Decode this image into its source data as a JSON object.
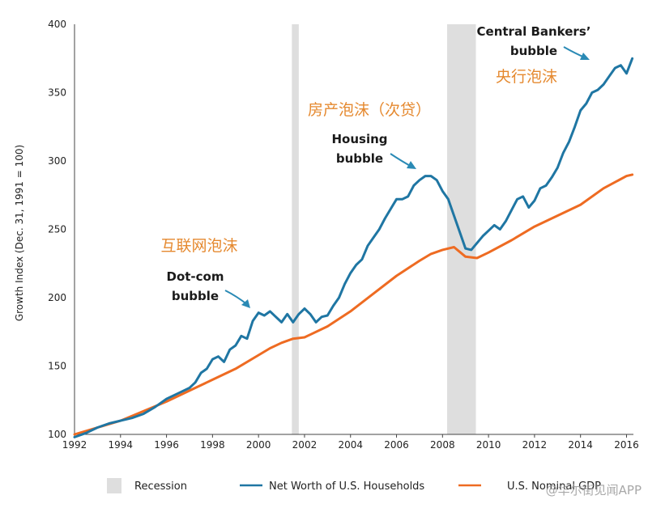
{
  "chart_data": {
    "type": "line",
    "title": "",
    "xlabel": "",
    "ylabel": "Growth Index (Dec. 31, 1991 = 100)",
    "xlim": [
      1992,
      2016.3
    ],
    "ylim": [
      100,
      400
    ],
    "x_ticks": [
      1992,
      1994,
      1996,
      1998,
      2000,
      2002,
      2004,
      2006,
      2008,
      2010,
      2012,
      2014,
      2016
    ],
    "y_ticks": [
      100,
      150,
      200,
      250,
      300,
      350,
      400
    ],
    "grid": false,
    "recessions": [
      [
        2001.45,
        2001.75
      ],
      [
        2008.2,
        2009.45
      ]
    ],
    "series": [
      {
        "name": "Net Worth of U.S. Households",
        "color": "#1f76a3",
        "x": [
          1992.0,
          1992.5,
          1993.0,
          1993.5,
          1994.0,
          1994.5,
          1995.0,
          1995.5,
          1996.0,
          1996.5,
          1997.0,
          1997.25,
          1997.5,
          1997.75,
          1998.0,
          1998.25,
          1998.5,
          1998.75,
          1999.0,
          1999.25,
          1999.5,
          1999.75,
          2000.0,
          2000.25,
          2000.5,
          2000.75,
          2001.0,
          2001.25,
          2001.5,
          2001.75,
          2002.0,
          2002.25,
          2002.5,
          2002.75,
          2003.0,
          2003.25,
          2003.5,
          2003.75,
          2004.0,
          2004.25,
          2004.5,
          2004.75,
          2005.0,
          2005.25,
          2005.5,
          2005.75,
          2006.0,
          2006.25,
          2006.5,
          2006.75,
          2007.0,
          2007.25,
          2007.5,
          2007.75,
          2008.0,
          2008.25,
          2008.5,
          2008.75,
          2009.0,
          2009.25,
          2009.5,
          2009.75,
          2010.0,
          2010.25,
          2010.5,
          2010.75,
          2011.0,
          2011.25,
          2011.5,
          2011.75,
          2012.0,
          2012.25,
          2012.5,
          2012.75,
          2013.0,
          2013.25,
          2013.5,
          2013.75,
          2014.0,
          2014.25,
          2014.5,
          2014.75,
          2015.0,
          2015.25,
          2015.5,
          2015.75,
          2016.0,
          2016.25
        ],
        "y": [
          98,
          101,
          105,
          108,
          110,
          112,
          115,
          120,
          126,
          130,
          134,
          138,
          145,
          148,
          155,
          157,
          153,
          162,
          165,
          172,
          170,
          183,
          189,
          187,
          190,
          186,
          182,
          188,
          182,
          188,
          192,
          188,
          182,
          186,
          187,
          194,
          200,
          210,
          218,
          224,
          228,
          238,
          244,
          250,
          258,
          265,
          272,
          272,
          274,
          282,
          286,
          289,
          289,
          286,
          278,
          272,
          260,
          248,
          236,
          235,
          240,
          245,
          249,
          253,
          250,
          256,
          264,
          272,
          274,
          266,
          271,
          280,
          282,
          288,
          295,
          306,
          314,
          325,
          337,
          342,
          350,
          352,
          356,
          362,
          368,
          370,
          364,
          375
        ],
        "x_range_check": null
      },
      {
        "name": "U.S. Nominal GDP",
        "color": "#ee6b22",
        "x": [
          1992.0,
          1993.0,
          1994.0,
          1995.0,
          1996.0,
          1997.0,
          1998.0,
          1999.0,
          2000.0,
          2000.5,
          2001.0,
          2001.5,
          2002.0,
          2003.0,
          2004.0,
          2005.0,
          2006.0,
          2007.0,
          2007.5,
          2008.0,
          2008.5,
          2009.0,
          2009.5,
          2010.0,
          2011.0,
          2012.0,
          2013.0,
          2014.0,
          2015.0,
          2016.0,
          2016.25
        ],
        "y": [
          100,
          105,
          110,
          117,
          124,
          132,
          140,
          148,
          158,
          163,
          167,
          170,
          171,
          179,
          190,
          203,
          216,
          227,
          232,
          235,
          237,
          230,
          229,
          233,
          242,
          252,
          260,
          268,
          280,
          289,
          290
        ]
      }
    ],
    "annotations": [
      {
        "text_lines": [
          "Dot-com",
          "bubble"
        ],
        "lang": "en"
      },
      {
        "text_lines": [
          "互联网泡沫"
        ],
        "lang": "zh"
      },
      {
        "text_lines": [
          "Housing",
          "bubble"
        ],
        "lang": "en"
      },
      {
        "text_lines": [
          "房产泡沫（次贷）"
        ],
        "lang": "zh"
      },
      {
        "text_lines": [
          "Central Bankers’",
          "bubble"
        ],
        "lang": "en"
      },
      {
        "text_lines": [
          "央行泡沫"
        ],
        "lang": "zh"
      }
    ],
    "legend": {
      "placement": "bottom",
      "items": [
        {
          "label": "Recession",
          "kind": "box",
          "color": "#dedede"
        },
        {
          "label": "Net Worth of U.S. Households",
          "kind": "line",
          "color": "#1f76a3"
        },
        {
          "label": "U.S. Nominal GDP",
          "kind": "line",
          "color": "#ee6b22"
        }
      ]
    }
  },
  "watermark": "@华尔街见闻APP"
}
